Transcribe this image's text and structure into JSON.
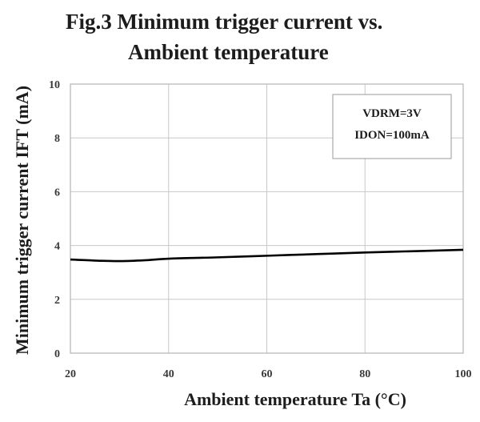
{
  "chart_data": {
    "type": "line",
    "title_lines": [
      "Fig.3  Minimum trigger current vs.",
      "Ambient temperature"
    ],
    "xlabel": "Ambient temperature Ta (°C)",
    "ylabel": "Minimum trigger current IFT (mA)",
    "xlim": [
      20,
      100
    ],
    "ylim": [
      0,
      10
    ],
    "xticks": [
      20,
      40,
      60,
      80,
      100
    ],
    "yticks": [
      0,
      2,
      4,
      6,
      8,
      10
    ],
    "grid": true,
    "legend_box": {
      "lines": [
        "VDRM=3V",
        "IDON=100mA"
      ],
      "placement": "top-right"
    },
    "series": [
      {
        "name": "IFT",
        "x": [
          20,
          25,
          30,
          35,
          40,
          50,
          60,
          70,
          80,
          90,
          100
        ],
        "y": [
          3.48,
          3.44,
          3.42,
          3.45,
          3.51,
          3.56,
          3.62,
          3.68,
          3.74,
          3.79,
          3.84
        ]
      }
    ]
  },
  "colors": {
    "line": "#000000",
    "grid": "#c8c8c8",
    "frame": "#b4b4b4",
    "box": "#9a9a9a"
  }
}
